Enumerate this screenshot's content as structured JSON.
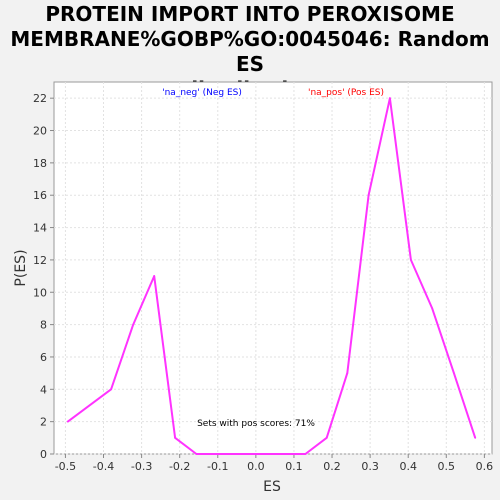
{
  "chart_data": {
    "type": "line",
    "title_lines": [
      "PROTEIN IMPORT INTO PEROXISOME",
      "MEMBRANE%GOBP%GO:0045046: Random ES",
      "distribution"
    ],
    "xlabel": "ES",
    "ylabel": "P(ES)",
    "xlim": [
      -0.53,
      0.62
    ],
    "ylim": [
      0,
      23
    ],
    "xticks": [
      -0.5,
      -0.4,
      -0.3,
      -0.2,
      -0.1,
      0.0,
      0.1,
      0.2,
      0.3,
      0.4,
      0.5,
      0.6
    ],
    "xtick_labels": [
      "-0.5",
      "-0.4",
      "-0.3",
      "-0.2",
      "-0.1",
      "0.0",
      "0.1",
      "0.2",
      "0.3",
      "0.4",
      "0.5",
      "0.6"
    ],
    "yticks": [
      0,
      2,
      4,
      6,
      8,
      10,
      12,
      14,
      16,
      18,
      20,
      22
    ],
    "grid": true,
    "legend_labels": [
      {
        "text": "'na_neg' (Neg ES)",
        "color": "#0000ff"
      },
      {
        "text": "'na_pos' (Pos ES)",
        "color": "#ff0000"
      }
    ],
    "annotation": "Sets with pos scores: 71%",
    "series": [
      {
        "color": "#ff33ff",
        "x": [
          -0.494,
          -0.38,
          -0.322,
          -0.267,
          -0.212,
          -0.156,
          -0.1,
          0.0,
          0.13,
          0.186,
          0.24,
          0.296,
          0.352,
          0.407,
          0.463,
          0.52,
          0.576
        ],
        "y": [
          2,
          4,
          8,
          11,
          1,
          0,
          0,
          0,
          0,
          1,
          5,
          16,
          22,
          12,
          9,
          5,
          1
        ]
      }
    ]
  }
}
